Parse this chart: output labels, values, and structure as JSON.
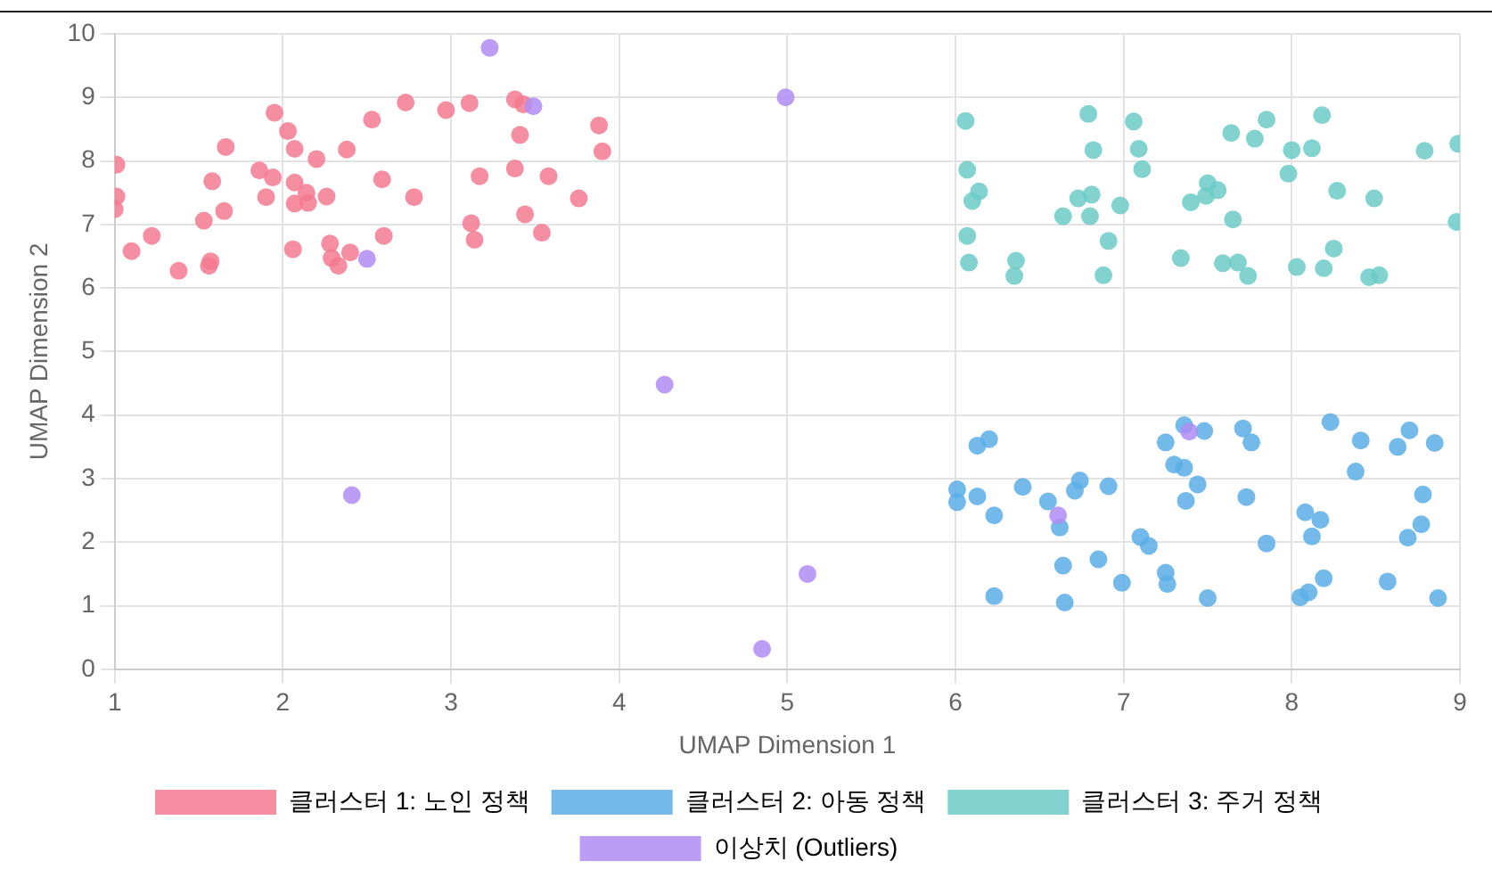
{
  "chart_data": {
    "type": "scatter",
    "xlabel": "UMAP Dimension 1",
    "ylabel": "UMAP Dimension 2",
    "xlim": [
      1,
      9
    ],
    "ylim": [
      0,
      10
    ],
    "xticks": [
      1,
      2,
      3,
      4,
      5,
      6,
      7,
      8,
      9
    ],
    "yticks": [
      0,
      1,
      2,
      3,
      4,
      5,
      6,
      7,
      8,
      9,
      10
    ],
    "grid": true,
    "legend": "bottom",
    "marker": "circle",
    "series": [
      {
        "name": "클러스터 1: 노인 정책",
        "color": "#f57a91",
        "x": [
          1.01,
          1.01,
          1.0,
          1.22,
          1.1,
          1.38,
          1.56,
          1.57,
          1.53,
          1.65,
          1.58,
          1.66,
          1.95,
          2.03,
          2.07,
          1.86,
          1.94,
          2.07,
          1.9,
          2.07,
          2.14,
          2.15,
          2.26,
          2.2,
          2.38,
          2.53,
          2.73,
          2.97,
          3.11,
          3.38,
          3.43,
          3.41,
          3.88,
          3.9,
          3.38,
          3.58,
          3.17,
          3.76,
          3.44,
          3.54,
          3.12,
          3.14,
          2.78,
          2.59,
          2.6,
          2.4,
          2.28,
          2.29,
          2.33,
          2.06
        ],
        "values": [
          7.94,
          7.44,
          7.24,
          6.82,
          6.58,
          6.27,
          6.35,
          6.42,
          7.06,
          7.21,
          7.68,
          8.22,
          8.76,
          8.47,
          8.19,
          7.85,
          7.74,
          7.66,
          7.43,
          7.33,
          7.5,
          7.34,
          7.44,
          8.03,
          8.18,
          8.65,
          8.92,
          8.8,
          8.91,
          8.97,
          8.89,
          8.41,
          8.56,
          8.15,
          7.88,
          7.76,
          7.76,
          7.41,
          7.16,
          6.87,
          7.02,
          6.76,
          7.43,
          7.71,
          6.82,
          6.56,
          6.7,
          6.47,
          6.35,
          6.61
        ]
      },
      {
        "name": "클러스터 2: 아동 정책",
        "color": "#5aaee8",
        "x": [
          6.13,
          6.2,
          7.36,
          7.48,
          7.25,
          7.71,
          7.76,
          8.23,
          8.41,
          8.7,
          8.63,
          8.85,
          7.3,
          7.36,
          8.38,
          7.44,
          6.01,
          6.01,
          6.13,
          6.4,
          6.55,
          6.74,
          6.71,
          6.91,
          6.23,
          6.62,
          7.37,
          7.73,
          8.78,
          8.08,
          8.17,
          8.77,
          8.69,
          8.12,
          7.85,
          7.1,
          7.15,
          6.64,
          6.85,
          7.25,
          7.26,
          6.99,
          6.23,
          6.65,
          7.5,
          8.19,
          8.57,
          8.05,
          8.1,
          8.87
        ],
        "values": [
          3.52,
          3.62,
          3.84,
          3.75,
          3.57,
          3.79,
          3.57,
          3.89,
          3.6,
          3.76,
          3.5,
          3.56,
          3.22,
          3.17,
          3.11,
          2.91,
          2.83,
          2.63,
          2.72,
          2.87,
          2.64,
          2.97,
          2.81,
          2.88,
          2.42,
          2.23,
          2.65,
          2.71,
          2.75,
          2.47,
          2.35,
          2.28,
          2.07,
          2.09,
          1.98,
          2.08,
          1.94,
          1.63,
          1.73,
          1.52,
          1.34,
          1.36,
          1.15,
          1.05,
          1.12,
          1.43,
          1.38,
          1.13,
          1.21,
          1.12
        ]
      },
      {
        "name": "클러스터 3: 주거 정책",
        "color": "#6ccbc8",
        "x": [
          6.06,
          6.79,
          7.06,
          6.82,
          7.09,
          7.64,
          7.78,
          7.85,
          8.18,
          8.0,
          8.12,
          8.79,
          8.99,
          6.07,
          7.11,
          7.98,
          6.14,
          6.1,
          6.73,
          6.81,
          6.98,
          6.64,
          6.8,
          7.5,
          7.56,
          7.49,
          7.4,
          7.65,
          8.27,
          8.49,
          8.98,
          6.07,
          6.91,
          6.08,
          6.36,
          6.35,
          6.88,
          7.34,
          7.59,
          7.68,
          7.74,
          8.03,
          8.19,
          8.25,
          8.46,
          8.52
        ],
        "values": [
          8.63,
          8.74,
          8.62,
          8.17,
          8.19,
          8.44,
          8.35,
          8.65,
          8.72,
          8.17,
          8.2,
          8.16,
          8.27,
          7.86,
          7.87,
          7.8,
          7.52,
          7.37,
          7.41,
          7.47,
          7.3,
          7.13,
          7.13,
          7.65,
          7.54,
          7.45,
          7.35,
          7.08,
          7.53,
          7.41,
          7.04,
          6.82,
          6.74,
          6.4,
          6.43,
          6.19,
          6.2,
          6.47,
          6.39,
          6.4,
          6.19,
          6.33,
          6.31,
          6.62,
          6.17,
          6.2
        ]
      },
      {
        "name": "이상치 (Outliers)",
        "color": "#b08cf5",
        "x": [
          3.23,
          3.49,
          2.5,
          4.99,
          4.27,
          2.41,
          5.12,
          4.85,
          7.39,
          6.61
        ],
        "values": [
          9.78,
          8.86,
          6.46,
          9.0,
          4.48,
          2.74,
          1.5,
          0.32,
          3.74,
          2.42
        ]
      }
    ]
  }
}
